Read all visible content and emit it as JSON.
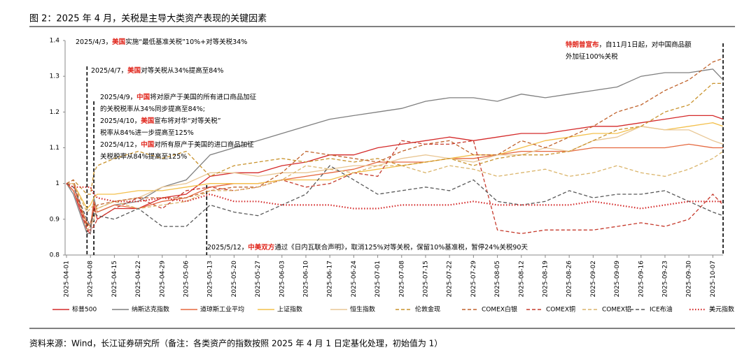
{
  "chart_data": {
    "type": "line",
    "title": "图 2：2025 年 4 月，关税是主导大类资产表现的关键因素",
    "source": "资料来源：Wind，长江证券研究所（备注：各类资产的指数按照 2025 年 4 月 1 日定基化处理，初始值为 1）",
    "x": [
      "2025-04-01",
      "2025-04-03",
      "2025-04-07",
      "2025-04-08",
      "2025-04-09",
      "2025-04-10",
      "2025-04-15",
      "2025-04-22",
      "2025-04-29",
      "2025-05-06",
      "2025-05-13",
      "2025-05-20",
      "2025-05-27",
      "2025-06-03",
      "2025-06-10",
      "2025-06-17",
      "2025-06-24",
      "2025-07-01",
      "2025-07-08",
      "2025-07-15",
      "2025-07-22",
      "2025-07-29",
      "2025-08-05",
      "2025-08-12",
      "2025-08-19",
      "2025-08-26",
      "2025-09-02",
      "2025-09-09",
      "2025-09-16",
      "2025-09-23",
      "2025-09-30",
      "2025-10-07",
      "2025-10-10"
    ],
    "xlim": [
      "2025-04-01",
      "2025-10-10"
    ],
    "xticks": [
      "2025-04-01",
      "2025-04-08",
      "2025-04-15",
      "2025-04-22",
      "2025-04-29",
      "2025-05-06",
      "2025-05-13",
      "2025-05-20",
      "2025-05-27",
      "2025-06-03",
      "2025-06-10",
      "2025-06-17",
      "2025-06-24",
      "2025-07-01",
      "2025-07-08",
      "2025-07-15",
      "2025-07-22",
      "2025-07-29",
      "2025-08-05",
      "2025-08-12",
      "2025-08-19",
      "2025-08-26",
      "2025-09-02",
      "2025-09-09",
      "2025-09-16",
      "2025-09-23",
      "2025-09-30",
      "2025-10-07"
    ],
    "ylim": [
      0.8,
      1.4
    ],
    "yticks": [
      0.8,
      0.9,
      1,
      1.1,
      1.2,
      1.3,
      1.4
    ],
    "series": [
      {
        "name": "标普500",
        "color": "#d42a2a",
        "dash": "solid",
        "values": [
          1,
          0.98,
          0.87,
          0.86,
          0.94,
          0.9,
          0.93,
          0.93,
          0.96,
          0.97,
          1.02,
          1.03,
          1.03,
          1.05,
          1.06,
          1.08,
          1.08,
          1.1,
          1.11,
          1.12,
          1.13,
          1.12,
          1.13,
          1.14,
          1.14,
          1.15,
          1.16,
          1.16,
          1.17,
          1.18,
          1.19,
          1.19,
          1.18
        ]
      },
      {
        "name": "纳斯达克指数",
        "color": "#7f7f7f",
        "dash": "solid",
        "values": [
          1,
          0.97,
          0.86,
          0.86,
          0.96,
          0.92,
          0.94,
          0.95,
          0.99,
          1.01,
          1.08,
          1.1,
          1.12,
          1.14,
          1.16,
          1.18,
          1.19,
          1.2,
          1.21,
          1.23,
          1.24,
          1.24,
          1.23,
          1.25,
          1.24,
          1.25,
          1.26,
          1.27,
          1.3,
          1.31,
          1.31,
          1.32,
          1.29
        ]
      },
      {
        "name": "道琼斯工业平均",
        "color": "#e5683f",
        "dash": "solid",
        "values": [
          1,
          0.98,
          0.89,
          0.88,
          0.95,
          0.92,
          0.94,
          0.93,
          0.95,
          0.96,
          0.99,
          1.0,
          1.0,
          1.01,
          1.02,
          1.03,
          1.04,
          1.06,
          1.06,
          1.06,
          1.07,
          1.07,
          1.08,
          1.09,
          1.09,
          1.09,
          1.1,
          1.1,
          1.1,
          1.1,
          1.11,
          1.1,
          1.1
        ]
      },
      {
        "name": "上证指数",
        "color": "#f3c04c",
        "dash": "solid",
        "values": [
          1,
          1.0,
          0.93,
          0.94,
          0.96,
          0.97,
          0.97,
          0.98,
          0.98,
          0.99,
          1.0,
          1.0,
          1.0,
          1.01,
          1.01,
          1.01,
          1.03,
          1.04,
          1.05,
          1.06,
          1.07,
          1.08,
          1.08,
          1.1,
          1.12,
          1.13,
          1.14,
          1.14,
          1.16,
          1.15,
          1.16,
          1.17,
          1.16
        ]
      },
      {
        "name": "恒生指数",
        "color": "#e9c795",
        "dash": "solid",
        "values": [
          1,
          1.0,
          0.87,
          0.88,
          0.9,
          0.93,
          0.95,
          0.96,
          0.99,
          1.0,
          1.03,
          1.03,
          1.02,
          1.03,
          1.03,
          1.04,
          1.05,
          1.05,
          1.07,
          1.08,
          1.07,
          1.06,
          1.08,
          1.08,
          1.1,
          1.09,
          1.12,
          1.13,
          1.16,
          1.15,
          1.15,
          1.12,
          1.11
        ]
      },
      {
        "name": "伦敦金现",
        "color": "#c8922c",
        "dash": "dashed",
        "values": [
          1,
          1.01,
          0.97,
          0.97,
          1.03,
          1.05,
          1.07,
          1.09,
          1.07,
          1.09,
          1.02,
          1.05,
          1.06,
          1.07,
          1.06,
          1.07,
          1.06,
          1.07,
          1.05,
          1.06,
          1.07,
          1.05,
          1.07,
          1.08,
          1.08,
          1.09,
          1.12,
          1.15,
          1.16,
          1.2,
          1.22,
          1.28,
          1.28
        ]
      },
      {
        "name": "COMEX白银",
        "color": "#c0622b",
        "dash": "dashed",
        "values": [
          1,
          1.01,
          0.88,
          0.89,
          0.92,
          0.94,
          0.95,
          0.96,
          0.96,
          0.96,
          0.98,
          0.99,
          0.99,
          1.03,
          1.09,
          1.08,
          1.07,
          1.06,
          1.09,
          1.11,
          1.12,
          1.08,
          1.08,
          1.12,
          1.1,
          1.13,
          1.16,
          1.2,
          1.22,
          1.26,
          1.29,
          1.34,
          1.35
        ]
      },
      {
        "name": "COMEX铜",
        "color": "#c63a2c",
        "dash": "dashed",
        "values": [
          1,
          1.0,
          0.87,
          0.87,
          0.88,
          0.9,
          0.93,
          0.96,
          0.93,
          0.98,
          0.99,
          0.98,
          0.99,
          1.01,
          0.99,
          1.0,
          1.03,
          1.02,
          1.12,
          1.11,
          1.11,
          1.12,
          0.87,
          0.86,
          0.87,
          0.87,
          0.87,
          0.88,
          0.89,
          0.88,
          0.9,
          0.97,
          0.94
        ]
      },
      {
        "name": "COMEX铝",
        "color": "#dab46a",
        "dash": "dashed",
        "values": [
          1,
          1.0,
          0.92,
          0.93,
          0.94,
          0.93,
          0.95,
          0.93,
          0.94,
          0.95,
          0.98,
          0.98,
          0.99,
          1.01,
          1.05,
          1.04,
          1.03,
          1.05,
          1.05,
          1.03,
          1.05,
          1.04,
          1.02,
          1.03,
          1.04,
          1.02,
          1.03,
          1.05,
          1.03,
          1.02,
          1.04,
          1.07,
          1.09
        ]
      },
      {
        "name": "ICE布油",
        "color": "#595959",
        "dash": "dashed",
        "values": [
          1,
          0.99,
          0.9,
          0.88,
          0.92,
          0.91,
          0.9,
          0.93,
          0.88,
          0.88,
          0.94,
          0.92,
          0.91,
          0.94,
          0.97,
          1.05,
          1.01,
          0.97,
          0.98,
          0.99,
          0.98,
          1.01,
          0.95,
          0.94,
          0.95,
          0.98,
          0.96,
          0.97,
          0.97,
          0.98,
          0.95,
          0.92,
          0.91
        ]
      },
      {
        "name": "美元指数",
        "color": "#d42a2a",
        "dash": "dotted",
        "values": [
          1,
          0.99,
          0.99,
          0.99,
          0.97,
          0.96,
          0.95,
          0.95,
          0.96,
          0.95,
          0.97,
          0.95,
          0.95,
          0.94,
          0.94,
          0.94,
          0.93,
          0.93,
          0.94,
          0.94,
          0.94,
          0.95,
          0.94,
          0.94,
          0.94,
          0.94,
          0.95,
          0.94,
          0.93,
          0.94,
          0.95,
          0.95,
          0.95
        ]
      }
    ],
    "annotations": [
      {
        "lines": [
          [
            {
              "text": "2025/4/3，"
            },
            {
              "text": "美国",
              "red": true
            },
            {
              "text": "实施“最低基准关税”10%+对等关税34%"
            }
          ]
        ]
      },
      {
        "line_date": "2025-04-07",
        "lines": [
          [
            {
              "text": "2025/4/7，"
            },
            {
              "text": "美国",
              "red": true
            },
            {
              "text": "对等关税从34%提高至84%"
            }
          ]
        ]
      },
      {
        "line_date": "2025-04-09",
        "lines": [
          [
            {
              "text": "2025/4/9，"
            },
            {
              "text": "中国",
              "red": true
            },
            {
              "text": "将对原产于美国的所有进口商品加征"
            }
          ],
          [
            {
              "text": "的关税税率从34%同步提高至84%;"
            }
          ],
          [
            {
              "text": "2025/4/10，"
            },
            {
              "text": "美国",
              "red": true
            },
            {
              "text": "宣布将对华“对等关税”"
            }
          ],
          [
            {
              "text": "税率从84%进一步提高至125%"
            }
          ],
          [
            {
              "text": "2025/4/12，"
            },
            {
              "text": "中国",
              "red": true
            },
            {
              "text": "对所有原产于美国的进口商品加征"
            }
          ],
          [
            {
              "text": "关税税率从84%提高至125%"
            }
          ]
        ]
      },
      {
        "line_date": "2025-05-12",
        "lines": [
          [
            {
              "text": "2025/5/12，"
            },
            {
              "text": "中美双方",
              "red": true
            },
            {
              "text": "通过《日内瓦联合声明》，取消125%对等关税，保留10%基准税，暂停24%关税90天"
            }
          ]
        ]
      },
      {
        "line_date": "2025-10-10",
        "lines": [
          [
            {
              "text": "特朗普宣布",
              "red": true
            },
            {
              "text": "，自11月1日起，对中国商品额"
            }
          ],
          [
            {
              "text": "外加征100%关税"
            }
          ]
        ]
      }
    ]
  }
}
